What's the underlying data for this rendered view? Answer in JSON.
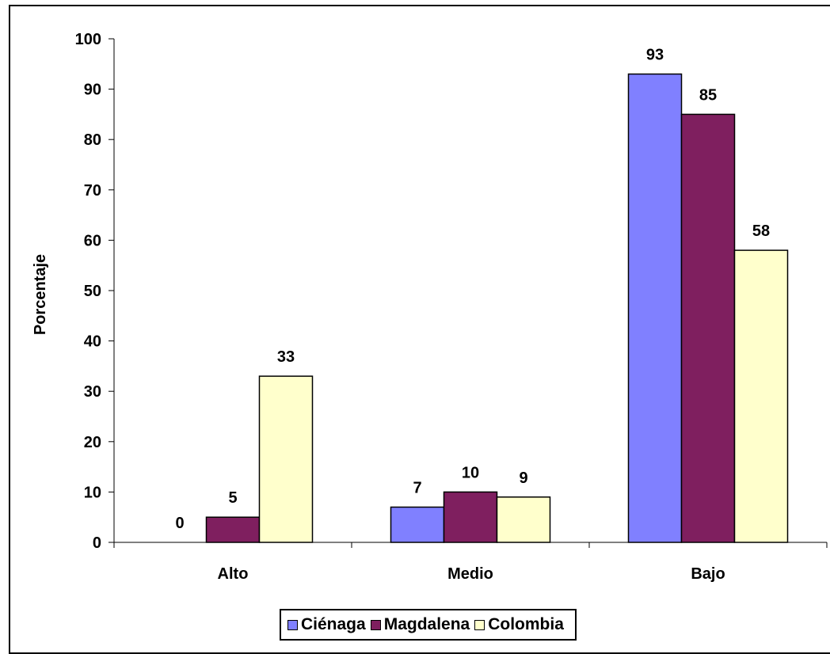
{
  "colors": {
    "Ciénaga": "#8080FF",
    "Magdalena": "#7F1F5F",
    "Colombia": "#FFFFCC",
    "outline": "#000000",
    "background": "#FFFFFF"
  },
  "chart_data": {
    "type": "bar",
    "title": "",
    "xlabel": "",
    "ylabel": "Porcentaje",
    "categories": [
      "Alto",
      "Medio",
      "Bajo"
    ],
    "series": [
      {
        "name": "Ciénaga",
        "values": [
          0,
          7,
          93
        ]
      },
      {
        "name": "Magdalena",
        "values": [
          5,
          10,
          85
        ]
      },
      {
        "name": "Colombia",
        "values": [
          33,
          9,
          58
        ]
      }
    ],
    "ylim": [
      0,
      100
    ],
    "yticks": [
      0,
      10,
      20,
      30,
      40,
      50,
      60,
      70,
      80,
      90,
      100
    ],
    "grid": false,
    "data_labels": true,
    "legend_position": "bottom"
  }
}
